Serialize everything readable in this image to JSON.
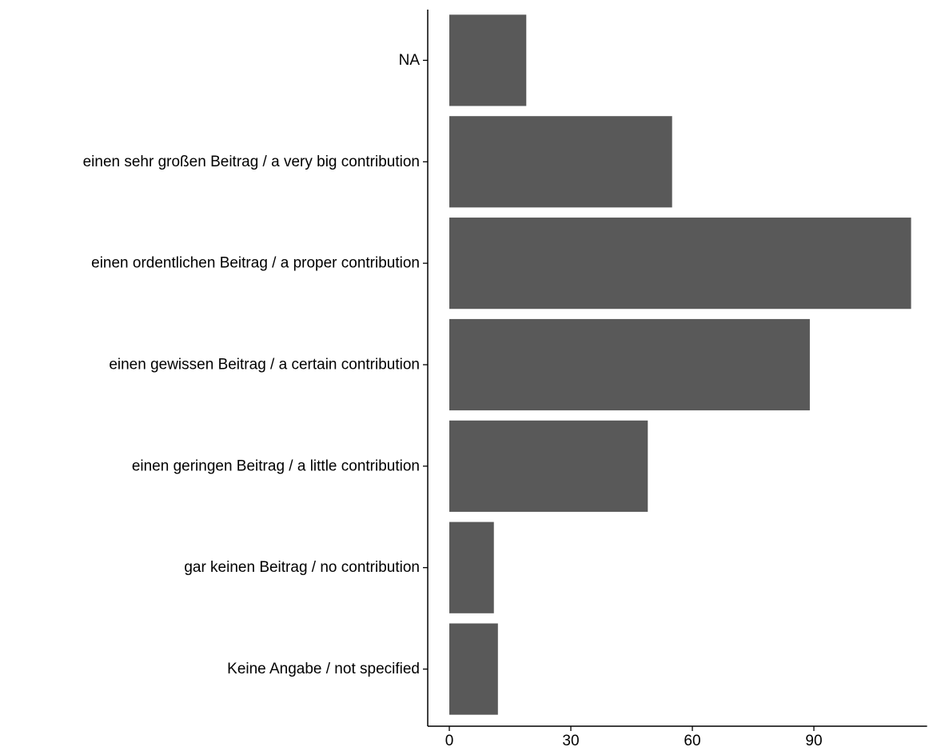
{
  "chart_data": {
    "type": "bar",
    "orientation": "horizontal",
    "title": "",
    "xlabel": "",
    "ylabel": "",
    "categories": [
      "NA",
      "einen sehr großen Beitrag / a very big contribution",
      "einen ordentlichen Beitrag / a proper contribution",
      "einen gewissen Beitrag / a certain contribution",
      "einen geringen Beitrag / a little contribution",
      "gar keinen Beitrag / no contribution",
      "Keine Angabe / not specified"
    ],
    "values": [
      19,
      55,
      114,
      89,
      49,
      11,
      12
    ],
    "xlim": [
      0,
      114
    ],
    "x_ticks": [
      0,
      30,
      60,
      90
    ],
    "x_tick_labels": [
      "0",
      "30",
      "60",
      "90"
    ],
    "bar_color": "#595959",
    "grid": false,
    "legend": "none"
  }
}
